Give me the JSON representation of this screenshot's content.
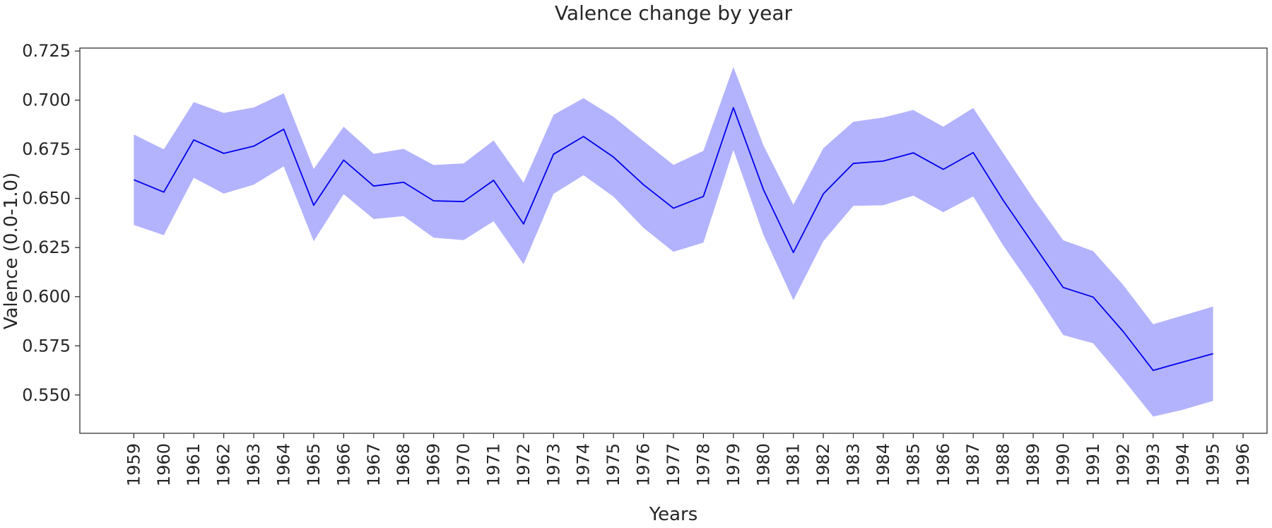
{
  "chart_data": {
    "type": "line",
    "title": "Valence change by year",
    "xlabel": "Years",
    "ylabel": "Valence (0.0-1.0)",
    "x_ticks": [
      1959,
      1960,
      1961,
      1962,
      1963,
      1964,
      1965,
      1966,
      1967,
      1968,
      1969,
      1970,
      1971,
      1972,
      1973,
      1974,
      1975,
      1976,
      1977,
      1978,
      1979,
      1980,
      1981,
      1982,
      1983,
      1984,
      1985,
      1986,
      1987,
      1988,
      1989,
      1990,
      1991,
      1992,
      1993,
      1994,
      1995,
      1996
    ],
    "xlim": [
      1957.2,
      1996.8
    ],
    "ylim": [
      0.5305,
      0.7265
    ],
    "y_ticks": [
      0.55,
      0.575,
      0.6,
      0.625,
      0.65,
      0.675,
      0.7,
      0.725
    ],
    "y_tick_labels": [
      "0.550",
      "0.575",
      "0.600",
      "0.625",
      "0.650",
      "0.675",
      "0.700",
      "0.725"
    ],
    "grid": false,
    "legend": "none",
    "line_color": "#0000ee",
    "band_color": "#b3b3fd",
    "series": [
      {
        "x": [
          1959,
          1960,
          1961,
          1962,
          1963,
          1964,
          1965,
          1966,
          1967,
          1968,
          1969,
          1970,
          1971,
          1972,
          1973,
          1974,
          1975,
          1976,
          1977,
          1978,
          1979,
          1980,
          1981,
          1982,
          1983,
          1984,
          1985,
          1986,
          1987,
          1988,
          1989,
          1990,
          1991,
          1992,
          1993,
          1994,
          1995
        ],
        "values": [
          0.6595,
          0.6532,
          0.6798,
          0.6729,
          0.6766,
          0.6852,
          0.6465,
          0.6695,
          0.6563,
          0.6582,
          0.6488,
          0.6484,
          0.6592,
          0.637,
          0.6725,
          0.6815,
          0.671,
          0.657,
          0.645,
          0.651,
          0.6962,
          0.6545,
          0.6225,
          0.6523,
          0.6678,
          0.669,
          0.6732,
          0.6648,
          0.6733,
          0.649,
          0.6268,
          0.6047,
          0.5998,
          0.5823,
          0.5625,
          0.5668,
          0.571
        ],
        "ci_upper": [
          0.6825,
          0.675,
          0.699,
          0.6935,
          0.6963,
          0.7035,
          0.665,
          0.6865,
          0.6727,
          0.6752,
          0.667,
          0.6678,
          0.6795,
          0.658,
          0.6925,
          0.701,
          0.6915,
          0.6792,
          0.667,
          0.6742,
          0.7169,
          0.677,
          0.6468,
          0.6755,
          0.689,
          0.6912,
          0.695,
          0.6865,
          0.696,
          0.673,
          0.65,
          0.6287,
          0.6232,
          0.606,
          0.586,
          0.5905,
          0.595
        ],
        "ci_lower": [
          0.6365,
          0.6313,
          0.6605,
          0.6524,
          0.657,
          0.6663,
          0.6282,
          0.6522,
          0.6395,
          0.641,
          0.63,
          0.6288,
          0.6384,
          0.6165,
          0.6523,
          0.6618,
          0.6509,
          0.635,
          0.6228,
          0.6275,
          0.6747,
          0.6315,
          0.5982,
          0.6282,
          0.6462,
          0.6465,
          0.6514,
          0.643,
          0.651,
          0.626,
          0.604,
          0.5805,
          0.5763,
          0.558,
          0.539,
          0.5425,
          0.547
        ]
      }
    ]
  }
}
